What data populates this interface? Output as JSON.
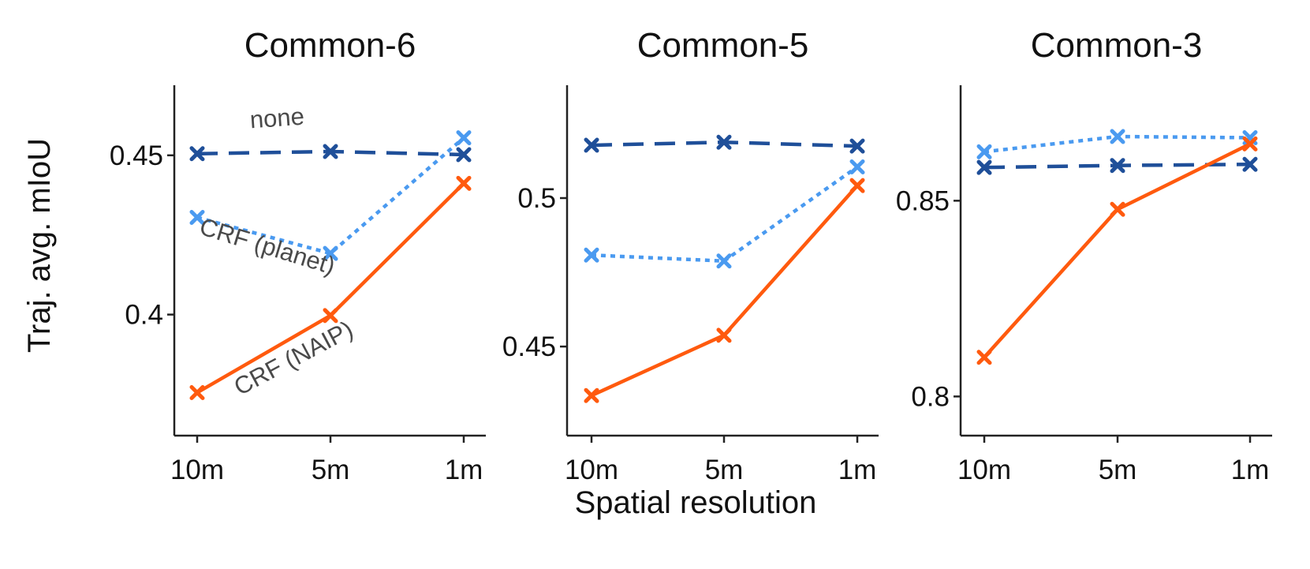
{
  "figure": {
    "ylabel": "Traj. avg. mIoU",
    "xlabel": "Spatial resolution"
  },
  "colors": {
    "none": "#1f4f99",
    "crf_planet": "#4a9af0",
    "crf_naip": "#ff5a0e",
    "axis": "#222222",
    "annotation_text": "#4a4a4a"
  },
  "chart_data": [
    {
      "type": "line",
      "title": "Common-6",
      "categories": [
        "10m",
        "5m",
        "1m"
      ],
      "ylim": [
        0.362,
        0.472
      ],
      "yticks": [
        0.4,
        0.45
      ],
      "ytick_labels": [
        "0.4",
        "0.45"
      ],
      "series": [
        {
          "key": "none",
          "values": [
            0.4505,
            0.4512,
            0.4502
          ],
          "style": "dashed"
        },
        {
          "key": "crf_planet",
          "values": [
            0.4305,
            0.4192,
            0.4555
          ],
          "style": "dotted"
        },
        {
          "key": "crf_naip",
          "values": [
            0.3755,
            0.3997,
            0.4412
          ],
          "style": "solid"
        }
      ],
      "annotations": [
        {
          "text": "none",
          "series": "none"
        },
        {
          "text": "CRF (planet)",
          "series": "crf_planet"
        },
        {
          "text": "CRF (NAIP)",
          "series": "crf_naip"
        }
      ]
    },
    {
      "type": "line",
      "title": "Common-5",
      "categories": [
        "10m",
        "5m",
        "1m"
      ],
      "ylim": [
        0.42,
        0.538
      ],
      "yticks": [
        0.45,
        0.5
      ],
      "ytick_labels": [
        "0.45",
        "0.5"
      ],
      "series": [
        {
          "key": "none",
          "values": [
            0.5178,
            0.5188,
            0.5175
          ],
          "style": "dashed"
        },
        {
          "key": "crf_planet",
          "values": [
            0.4808,
            0.4788,
            0.5105
          ],
          "style": "dotted"
        },
        {
          "key": "crf_naip",
          "values": [
            0.4335,
            0.4538,
            0.5042
          ],
          "style": "solid"
        }
      ]
    },
    {
      "type": "line",
      "title": "Common-3",
      "categories": [
        "10m",
        "5m",
        "1m"
      ],
      "ylim": [
        0.79,
        0.8795
      ],
      "yticks": [
        0.8,
        0.85
      ],
      "ytick_labels": [
        "0.8",
        "0.85"
      ],
      "series": [
        {
          "key": "none",
          "values": [
            0.8585,
            0.859,
            0.8593
          ],
          "style": "dashed"
        },
        {
          "key": "crf_planet",
          "values": [
            0.8625,
            0.8664,
            0.8661
          ],
          "style": "dotted"
        },
        {
          "key": "crf_naip",
          "values": [
            0.81,
            0.8478,
            0.8645
          ],
          "style": "solid"
        }
      ]
    }
  ]
}
